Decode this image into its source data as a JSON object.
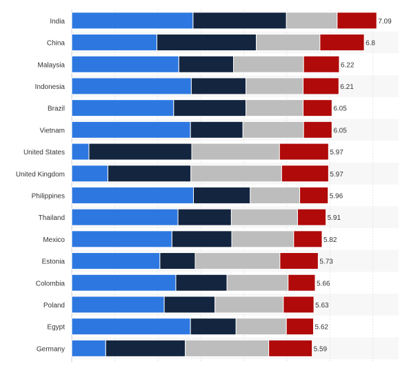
{
  "chart_data": {
    "type": "bar",
    "orientation": "horizontal",
    "stacked": true,
    "categories": [
      "India",
      "China",
      "Malaysia",
      "Indonesia",
      "Brazil",
      "Vietnam",
      "United States",
      "United Kingdom",
      "Philippines",
      "Thailand",
      "Mexico",
      "Estonia",
      "Colombia",
      "Poland",
      "Egypt",
      "Germany"
    ],
    "totals": [
      "7.09",
      "6.8",
      "6.22",
      "6.21",
      "6.05",
      "6.05",
      "5.97",
      "5.97",
      "5.96",
      "5.91",
      "5.82",
      "5.73",
      "5.66",
      "5.63",
      "5.62",
      "5.59"
    ],
    "series": [
      {
        "color": "#2d78e0",
        "values": [
          2.82,
          1.98,
          2.49,
          2.78,
          2.37,
          2.76,
          0.4,
          0.84,
          2.83,
          2.47,
          2.33,
          2.05,
          2.42,
          2.15,
          2.76,
          0.79
        ]
      },
      {
        "color": "#14253f",
        "values": [
          2.17,
          2.31,
          1.27,
          1.27,
          1.68,
          1.22,
          2.39,
          1.93,
          1.32,
          1.24,
          1.39,
          0.82,
          1.19,
          1.18,
          1.06,
          1.85
        ]
      },
      {
        "color": "#bdbdbd",
        "values": [
          1.18,
          1.48,
          1.63,
          1.33,
          1.33,
          1.41,
          2.04,
          2.11,
          1.15,
          1.54,
          1.44,
          1.97,
          1.42,
          1.59,
          1.17,
          1.94
        ]
      },
      {
        "color": "#b00a0a",
        "values": [
          0.92,
          1.03,
          0.83,
          0.83,
          0.67,
          0.66,
          1.14,
          1.09,
          0.66,
          0.66,
          0.66,
          0.89,
          0.63,
          0.71,
          0.63,
          1.01
        ]
      }
    ],
    "xlim": [
      0,
      7.6
    ],
    "grid": true,
    "legend": "none"
  }
}
